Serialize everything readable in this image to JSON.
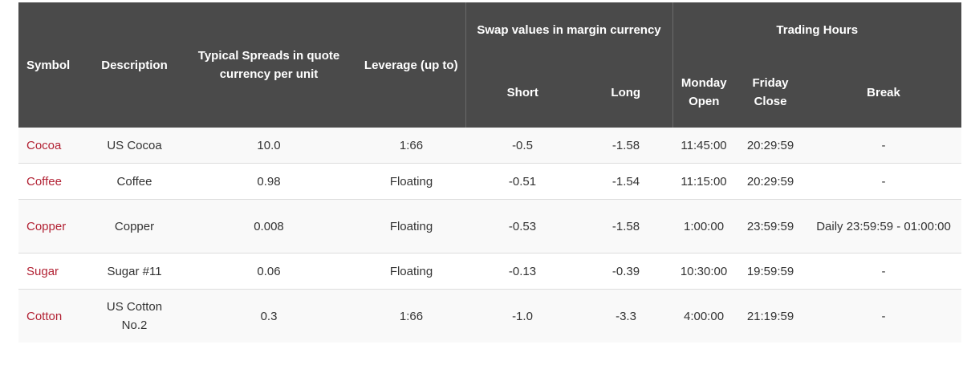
{
  "header": {
    "symbol": "Symbol",
    "description": "Description",
    "spreads_line1": "Typical Spreads in quote",
    "spreads_line2": "currency per unit",
    "leverage": "Leverage (up to)",
    "swap_group": "Swap values in margin currency",
    "short": "Short",
    "long": "Long",
    "hours_group": "Trading Hours",
    "monday_open": "Monday Open",
    "friday_close": "Friday Close",
    "break": "Break"
  },
  "colors": {
    "header_bg": "#4a4a4a",
    "symbol_link": "#b22234",
    "row_alt": "#f9f9f9"
  },
  "rows": [
    {
      "symbol": "Cocoa",
      "description": "US Cocoa",
      "spread": "10.0",
      "leverage": "1:66",
      "short": "-0.5",
      "long": "-1.58",
      "monday_open": "11:45:00",
      "friday_close": "20:29:59",
      "break": "-"
    },
    {
      "symbol": "Coffee",
      "description": "Coffee",
      "spread": "0.98",
      "leverage": "Floating",
      "short": "-0.51",
      "long": "-1.54",
      "monday_open": "11:15:00",
      "friday_close": "20:29:59",
      "break": "-"
    },
    {
      "symbol": "Copper",
      "description": "Copper",
      "spread": "0.008",
      "leverage": "Floating",
      "short": "-0.53",
      "long": "-1.58",
      "monday_open": "1:00:00",
      "friday_close": "23:59:59",
      "break": "Daily 23:59:59 - 01:00:00"
    },
    {
      "symbol": "Sugar",
      "description": "Sugar #11",
      "spread": "0.06",
      "leverage": "Floating",
      "short": "-0.13",
      "long": "-0.39",
      "monday_open": "10:30:00",
      "friday_close": "19:59:59",
      "break": "-"
    },
    {
      "symbol": "Cotton",
      "description": "US Cotton No.2",
      "spread": "0.3",
      "leverage": "1:66",
      "short": "-1.0",
      "long": "-3.3",
      "monday_open": "4:00:00",
      "friday_close": "21:19:59",
      "break": "-"
    }
  ]
}
